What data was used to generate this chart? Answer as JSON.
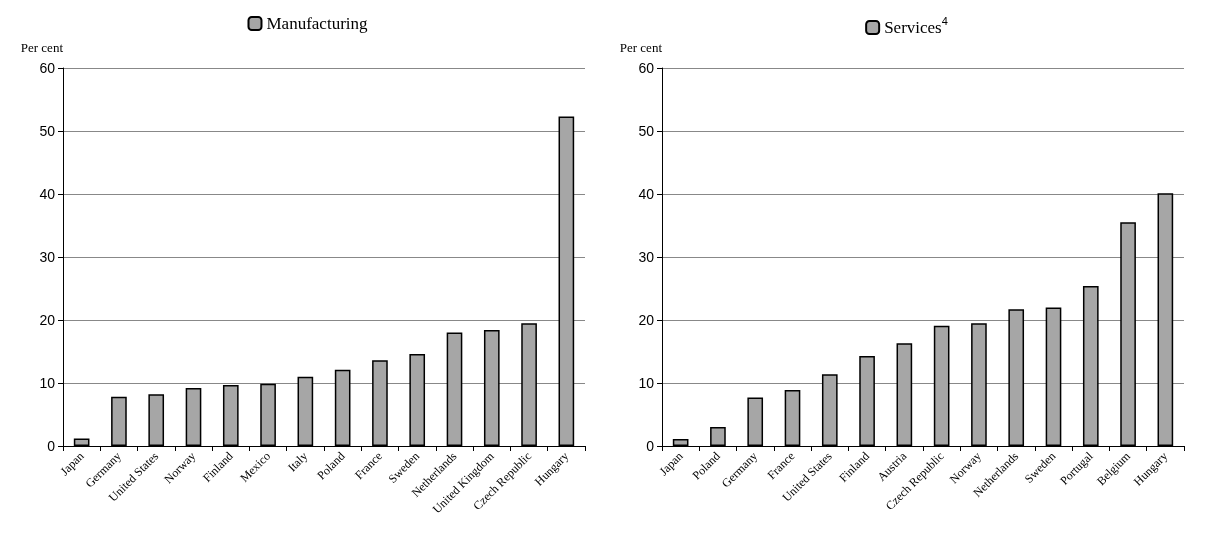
{
  "chart_data": [
    {
      "type": "bar",
      "ylabel": "Per cent",
      "categories": [
        "Japan",
        "Germany",
        "United States",
        "Norway",
        "Finland",
        "Mexico",
        "Italy",
        "Poland",
        "France",
        "Sweden",
        "Netherlands",
        "United Kingdom",
        "Czech Republic",
        "Hungary"
      ],
      "series": [
        {
          "name": "Manufacturing",
          "color": "#a6a6a6",
          "values": [
            1.2,
            7.8,
            8.2,
            9.2,
            9.7,
            9.9,
            11.0,
            12.1,
            13.6,
            14.6,
            18.0,
            18.4,
            19.5,
            52.3
          ]
        }
      ],
      "ylim": [
        0,
        60
      ],
      "yticks": [
        0,
        10,
        20,
        30,
        40,
        50,
        60
      ],
      "grid": "y",
      "legend": "top"
    },
    {
      "type": "bar",
      "ylabel": "Per cent",
      "categories": [
        "Japan",
        "Poland",
        "Germany",
        "France",
        "United States",
        "Finland",
        "Austria",
        "Czech Republic",
        "Norway",
        "Netherlands",
        "Sweden",
        "Portugal",
        "Belgium",
        "Hungary"
      ],
      "series": [
        {
          "name": "Services$^{4}$",
          "color": "#a6a6a6",
          "values": [
            1.1,
            3.0,
            7.7,
            8.9,
            11.4,
            14.3,
            16.3,
            19.1,
            19.5,
            21.7,
            22.0,
            25.4,
            35.5,
            40.1
          ]
        }
      ],
      "ylim": [
        0,
        60
      ],
      "yticks": [
        0,
        10,
        20,
        30,
        40,
        50,
        60
      ],
      "grid": "y",
      "legend": "top"
    }
  ]
}
